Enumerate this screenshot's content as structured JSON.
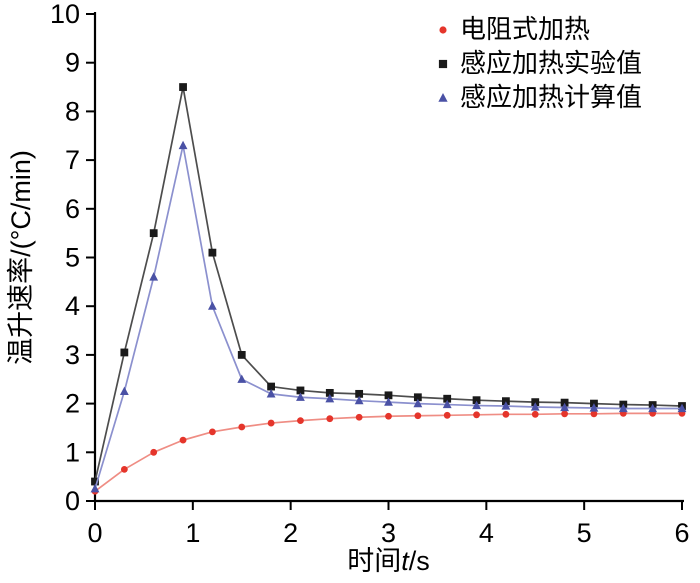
{
  "chart_data": {
    "type": "line",
    "title": "",
    "xlabel": "时间t/s",
    "xlabel_parts": [
      {
        "text": "时间",
        "italic": false
      },
      {
        "text": "t",
        "italic": true
      },
      {
        "text": "/s",
        "italic": false
      }
    ],
    "ylabel": "温升速率/(°C/min)",
    "xlim": [
      0,
      6
    ],
    "ylim": [
      0,
      10
    ],
    "xticks": [
      0,
      1,
      2,
      3,
      4,
      5,
      6
    ],
    "yticks": [
      0,
      1,
      2,
      3,
      4,
      5,
      6,
      7,
      8,
      9,
      10
    ],
    "grid": false,
    "legend_position": "top-right",
    "x": [
      0,
      0.3,
      0.6,
      0.9,
      1.2,
      1.5,
      1.8,
      2.1,
      2.4,
      2.7,
      3.0,
      3.3,
      3.6,
      3.9,
      4.2,
      4.5,
      4.8,
      5.1,
      5.4,
      5.7,
      6.0
    ],
    "series": [
      {
        "id": "resistance-heating",
        "name": "电阻式加热",
        "marker": "circle",
        "color": "#e5352b",
        "line_color": "#ef8d84",
        "values": [
          0.2,
          0.65,
          1.0,
          1.25,
          1.42,
          1.52,
          1.6,
          1.65,
          1.69,
          1.72,
          1.74,
          1.75,
          1.76,
          1.77,
          1.78,
          1.78,
          1.79,
          1.79,
          1.8,
          1.8,
          1.8
        ]
      },
      {
        "id": "induction-heating-experimental",
        "name": "感应加热实验值",
        "marker": "square",
        "color": "#1a1a1a",
        "line_color": "#4d4d4d",
        "values": [
          0.4,
          3.05,
          5.5,
          8.5,
          5.1,
          3.0,
          2.35,
          2.27,
          2.22,
          2.2,
          2.17,
          2.13,
          2.1,
          2.07,
          2.05,
          2.03,
          2.02,
          2.0,
          1.98,
          1.97,
          1.95
        ]
      },
      {
        "id": "induction-heating-calculated",
        "name": "感应加热计算值",
        "marker": "triangle",
        "color": "#4a51a5",
        "line_color": "#8b90ce",
        "values": [
          0.25,
          2.25,
          4.6,
          7.3,
          4.0,
          2.5,
          2.2,
          2.13,
          2.1,
          2.06,
          2.03,
          2.0,
          1.98,
          1.96,
          1.95,
          1.93,
          1.92,
          1.91,
          1.9,
          1.9,
          1.9
        ]
      }
    ]
  }
}
